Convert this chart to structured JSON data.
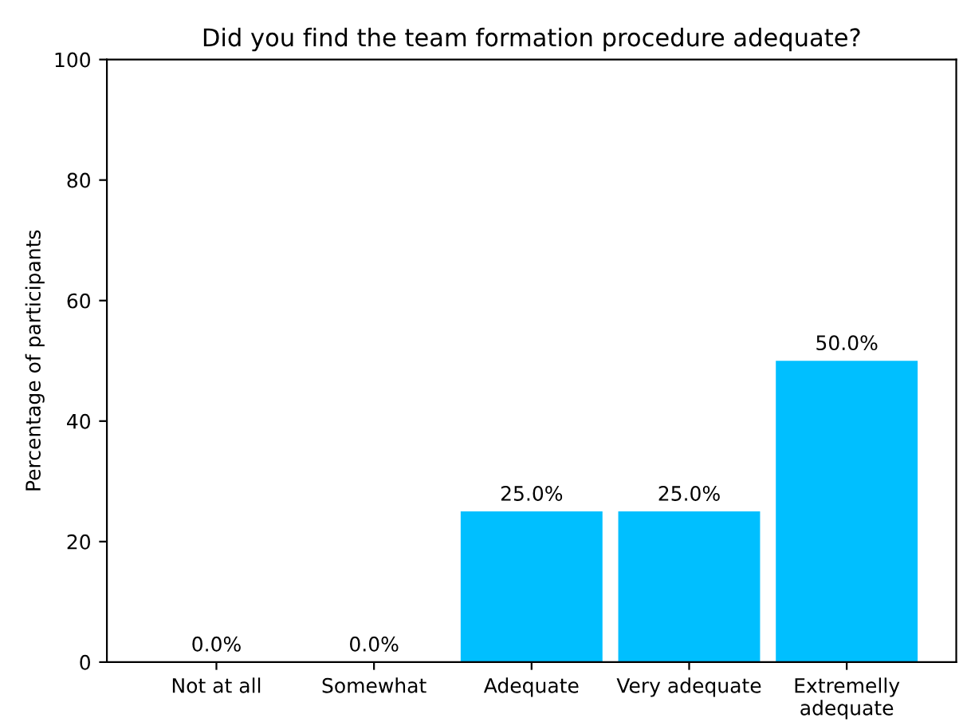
{
  "chart_data": {
    "type": "bar",
    "title": "Did you find the team formation procedure adequate?",
    "ylabel": "Percentage of participants",
    "categories": [
      "Not at all",
      "Somewhat",
      "Adequate",
      "Very adequate",
      "Extremelly\nadequate"
    ],
    "values": [
      0,
      0,
      25,
      25,
      50
    ],
    "value_labels": [
      "0.0%",
      "0.0%",
      "25.0%",
      "25.0%",
      "50.0%"
    ],
    "color": "#00bfff",
    "ylim": [
      0,
      100
    ],
    "yticks": [
      0,
      20,
      40,
      60,
      80,
      100
    ],
    "grid": false
  }
}
